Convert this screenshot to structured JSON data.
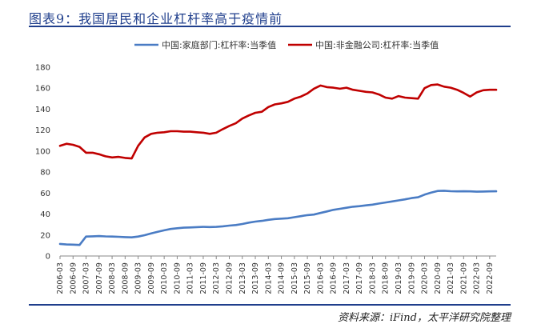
{
  "header": {
    "title": "图表9：我国居民和企业杠杆率高于疫情前"
  },
  "footer": {
    "source": "资料来源：iFind，太平洋研究院整理"
  },
  "chart_data": {
    "type": "line",
    "title": "图表9：我国居民和企业杠杆率高于疫情前",
    "xlabel": "",
    "ylabel": "",
    "ylim": [
      0,
      180
    ],
    "yticks": [
      0,
      20,
      40,
      60,
      80,
      100,
      120,
      140,
      160,
      180
    ],
    "grid": false,
    "legend_position": "top",
    "x": [
      "2006-03",
      "2006-06",
      "2006-09",
      "2006-12",
      "2007-03",
      "2007-06",
      "2007-09",
      "2007-12",
      "2008-03",
      "2008-06",
      "2008-09",
      "2008-12",
      "2009-03",
      "2009-06",
      "2009-09",
      "2009-12",
      "2010-03",
      "2010-06",
      "2010-09",
      "2010-12",
      "2011-03",
      "2011-06",
      "2011-09",
      "2011-12",
      "2012-03",
      "2012-06",
      "2012-09",
      "2012-12",
      "2013-03",
      "2013-06",
      "2013-09",
      "2013-12",
      "2014-03",
      "2014-06",
      "2014-09",
      "2014-12",
      "2015-03",
      "2015-06",
      "2015-09",
      "2015-12",
      "2016-03",
      "2016-06",
      "2016-09",
      "2016-12",
      "2017-03",
      "2017-06",
      "2017-09",
      "2017-12",
      "2018-03",
      "2018-06",
      "2018-09",
      "2018-12",
      "2019-03",
      "2019-06",
      "2019-09",
      "2019-12",
      "2020-03",
      "2020-06",
      "2020-09",
      "2020-12",
      "2021-03",
      "2021-06",
      "2021-09",
      "2021-12",
      "2022-03",
      "2022-06",
      "2022-09",
      "2022-12"
    ],
    "x_tick_labels": [
      "2006-03",
      "2006-09",
      "2007-03",
      "2007-09",
      "2008-03",
      "2008-09",
      "2009-03",
      "2009-09",
      "2010-03",
      "2010-09",
      "2011-03",
      "2011-09",
      "2012-03",
      "2012-09",
      "2013-03",
      "2013-09",
      "2014-03",
      "2014-09",
      "2015-03",
      "2015-09",
      "2016-03",
      "2016-09",
      "2017-03",
      "2017-09",
      "2018-03",
      "2018-09",
      "2019-03",
      "2019-09",
      "2020-03",
      "2020-09",
      "2021-03",
      "2021-09",
      "2022-03",
      "2022-09"
    ],
    "series": [
      {
        "name": "中国:家庭部门:杠杆率:当季值",
        "color": "#4a7cc4",
        "values": [
          11.5,
          11.0,
          10.8,
          10.5,
          18.5,
          18.8,
          19.0,
          18.7,
          18.5,
          18.3,
          18.0,
          17.8,
          18.5,
          19.8,
          21.5,
          23.0,
          24.5,
          25.8,
          26.5,
          27.0,
          27.2,
          27.5,
          27.8,
          27.6,
          27.8,
          28.3,
          29.0,
          29.5,
          30.5,
          31.8,
          32.8,
          33.5,
          34.5,
          35.2,
          35.6,
          36.0,
          37.0,
          38.0,
          39.0,
          39.5,
          41.0,
          42.5,
          44.0,
          45.0,
          46.0,
          47.0,
          47.5,
          48.3,
          49.0,
          50.0,
          51.0,
          52.0,
          53.0,
          54.0,
          55.2,
          56.0,
          58.5,
          60.5,
          62.0,
          62.2,
          61.8,
          61.6,
          61.7,
          61.6,
          61.3,
          61.5,
          61.6,
          61.7
        ]
      },
      {
        "name": "中国:非金融公司:杠杆率:当季值",
        "color": "#c00000",
        "values": [
          105.0,
          107.0,
          106.0,
          104.0,
          98.5,
          98.5,
          97.0,
          95.0,
          94.0,
          94.5,
          93.5,
          93.0,
          105.0,
          113.0,
          116.5,
          117.5,
          118.0,
          119.0,
          119.0,
          118.5,
          118.5,
          118.0,
          117.5,
          116.5,
          117.5,
          121.0,
          124.0,
          126.5,
          131.0,
          134.0,
          136.5,
          137.5,
          142.0,
          144.5,
          145.5,
          147.0,
          150.0,
          152.0,
          155.0,
          159.5,
          162.5,
          161.0,
          160.5,
          159.5,
          160.5,
          158.5,
          157.5,
          156.5,
          156.0,
          154.0,
          151.0,
          150.0,
          152.5,
          151.0,
          150.5,
          150.0,
          160.0,
          163.0,
          163.5,
          161.5,
          160.5,
          158.5,
          155.5,
          152.0,
          156.0,
          158.0,
          158.5,
          158.5
        ]
      }
    ]
  }
}
